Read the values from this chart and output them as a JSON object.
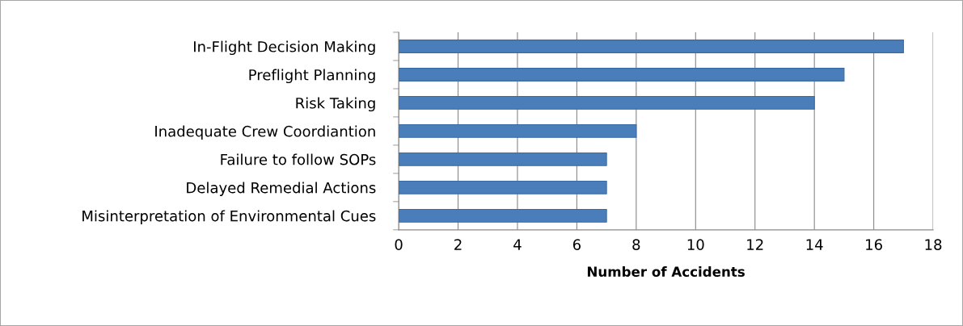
{
  "chart_data": {
    "type": "bar",
    "orientation": "horizontal",
    "categories": [
      "In-Flight Decision Making",
      "Preflight Planning",
      "Risk Taking",
      "Inadequate Crew Coordiantion",
      "Failure to follow SOPs",
      "Delayed Remedial Actions",
      "Misinterpretation of Environmental Cues"
    ],
    "values": [
      17,
      15,
      14,
      8,
      7,
      7,
      7
    ],
    "color": "#4a7ebb",
    "xlabel": "Number of Accidents",
    "xlim": [
      0,
      18
    ],
    "xticks": [
      0,
      2,
      4,
      6,
      8,
      10,
      12,
      14,
      16,
      18
    ],
    "grid": "x",
    "legend": false
  }
}
